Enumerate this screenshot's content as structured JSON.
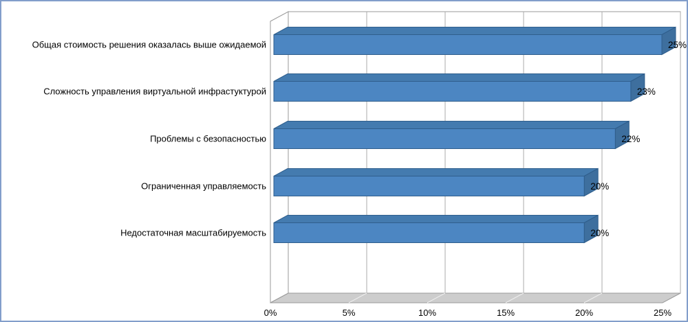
{
  "chart_data": {
    "type": "bar",
    "orientation": "horizontal",
    "style": "3d-oblique",
    "title": "",
    "categories": [
      "Общая стоимость решения оказалась выше ожидаемой",
      "Сложность управления виртуальной инфрастуктурой",
      "Проблемы с безопасностью",
      "Ограниченная управляемость",
      "Недостаточная масштабируемость"
    ],
    "values": [
      25,
      23,
      22,
      20,
      20
    ],
    "value_labels": [
      "25%",
      "23%",
      "22%",
      "20%",
      "20%"
    ],
    "x_ticks": [
      {
        "value": 0,
        "label": "0%"
      },
      {
        "value": 5,
        "label": "5%"
      },
      {
        "value": 10,
        "label": "10%"
      },
      {
        "value": 15,
        "label": "15%"
      },
      {
        "value": 20,
        "label": "20%"
      },
      {
        "value": 25,
        "label": "25%"
      }
    ],
    "xlim": [
      0,
      25
    ],
    "grid": true,
    "legend": "none",
    "colors": {
      "bar_front": "#4C86C2",
      "bar_top": "#447BAF",
      "bar_end": "#3E6F9E",
      "bar_outline": "#2F5E8C",
      "gridline": "#ABABAB",
      "wall_border": "#9A9A9A",
      "wall_fill": "#FFFFFF",
      "floor_fill": "#CDCDCD",
      "floor_line": "#EFEFEF",
      "frame_border": "#829ECB",
      "text": "#000000"
    }
  }
}
